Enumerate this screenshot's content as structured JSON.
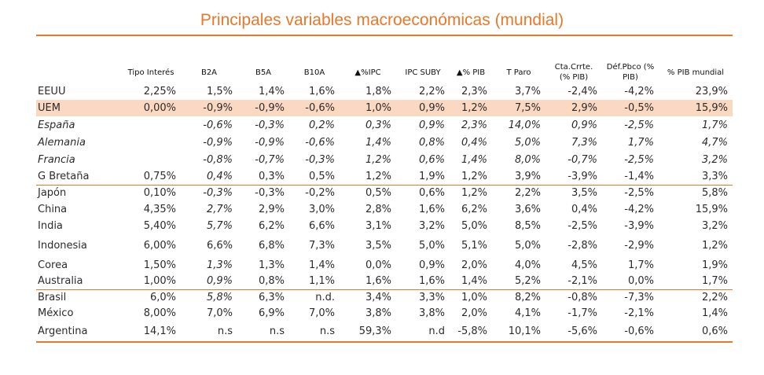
{
  "title": "Principales variables macroeconómicas (mundial)",
  "columns": [
    "",
    "Tipo Interés",
    "B2A",
    "B5A",
    "B10A",
    "▲%IPC",
    "IPC SUBY",
    "▲%  PIB",
    "T Paro",
    "Cta.Crrte.\n(% PIB)",
    "Déf.Pbco  (%\nPIB)",
    "% PIB mundial"
  ],
  "rows": [
    {
      "name": "EEUU",
      "values": [
        "2,25%",
        "1,5%",
        "1,4%",
        "1,6%",
        "1,8%",
        "2,2%",
        "2,3%",
        "3,7%",
        "-2,4%",
        "-4,2%",
        "23,9%"
      ]
    },
    {
      "name": "UEM",
      "values": [
        "0,00%",
        "-0,9%",
        "-0,9%",
        "-0,6%",
        "1,0%",
        "0,9%",
        "1,2%",
        "7,5%",
        "2,9%",
        "-0,5%",
        "15,9%"
      ]
    },
    {
      "name": "España",
      "values": [
        "",
        "-0,6%",
        "-0,3%",
        "0,2%",
        "0,3%",
        "0,9%",
        "2,3%",
        "14,0%",
        "0,9%",
        "-2,5%",
        "1,7%"
      ]
    },
    {
      "name": "Alemania",
      "values": [
        "",
        "-0,9%",
        "-0,9%",
        "-0,6%",
        "1,4%",
        "0,8%",
        "0,4%",
        "5,0%",
        "7,3%",
        "1,7%",
        "4,7%"
      ]
    },
    {
      "name": "Francia",
      "values": [
        "",
        "-0,8%",
        "-0,7%",
        "-0,3%",
        "1,2%",
        "0,6%",
        "1,4%",
        "8,0%",
        "-0,7%",
        "-2,5%",
        "3,2%"
      ]
    },
    {
      "name": "G Bretaña",
      "values": [
        "0,75%",
        "0,4%",
        "0,3%",
        "0,5%",
        "1,2%",
        "1,9%",
        "1,2%",
        "3,9%",
        "-3,9%",
        "-1,4%",
        "3,3%"
      ]
    },
    {
      "name": "Japón",
      "values": [
        "0,10%",
        "-0,3%",
        "-0,3%",
        "-0,2%",
        "0,5%",
        "0,6%",
        "1,2%",
        "2,2%",
        "3,5%",
        "-2,5%",
        "5,8%"
      ]
    },
    {
      "name": "China",
      "values": [
        "4,35%",
        "2,7%",
        "2,9%",
        "3,0%",
        "2,8%",
        "1,6%",
        "6,2%",
        "3,6%",
        "0,4%",
        "-4,2%",
        "15,9%"
      ]
    },
    {
      "name": "India",
      "values": [
        "5,40%",
        "5,7%",
        "6,2%",
        "6,6%",
        "3,1%",
        "3,2%",
        "5,0%",
        "8,5%",
        "-2,5%",
        "-3,9%",
        "3,2%"
      ]
    },
    {
      "name": "Indonesia",
      "values": [
        "6,00%",
        "6,6%",
        "6,8%",
        "7,3%",
        "3,5%",
        "5,0%",
        "5,1%",
        "5,0%",
        "-2,8%",
        "-2,9%",
        "1,2%"
      ]
    },
    {
      "name": "Corea",
      "values": [
        "1,50%",
        "1,3%",
        "1,3%",
        "1,4%",
        "0,0%",
        "0,9%",
        "2,0%",
        "4,0%",
        "4,5%",
        "1,7%",
        "1,9%"
      ]
    },
    {
      "name": "Australia",
      "values": [
        "1,00%",
        "0,9%",
        "0,8%",
        "1,1%",
        "1,6%",
        "1,6%",
        "1,4%",
        "5,2%",
        "-2,1%",
        "0,0%",
        "1,7%"
      ]
    },
    {
      "name": "Brasil",
      "values": [
        "6,0%",
        "5,8%",
        "6,3%",
        "n.d.",
        "3,4%",
        "3,3%",
        "1,0%",
        "8,2%",
        "-0,8%",
        "-7,3%",
        "2,2%"
      ]
    },
    {
      "name": "México",
      "values": [
        "8,00%",
        "7,0%",
        "6,9%",
        "7,0%",
        "3,8%",
        "3,8%",
        "2,0%",
        "4,1%",
        "-1,7%",
        "-2,1%",
        "1,4%"
      ]
    },
    {
      "name": "Argentina",
      "values": [
        "14,1%",
        "n.s",
        "n.s",
        "n.s",
        "59,3%",
        "n.d",
        "-5,8%",
        "10,1%",
        "-5,6%",
        "-0,6%",
        "0,6%"
      ]
    }
  ],
  "colors": {
    "accent": "#e8782a",
    "highlight": "#fbd8c1"
  }
}
